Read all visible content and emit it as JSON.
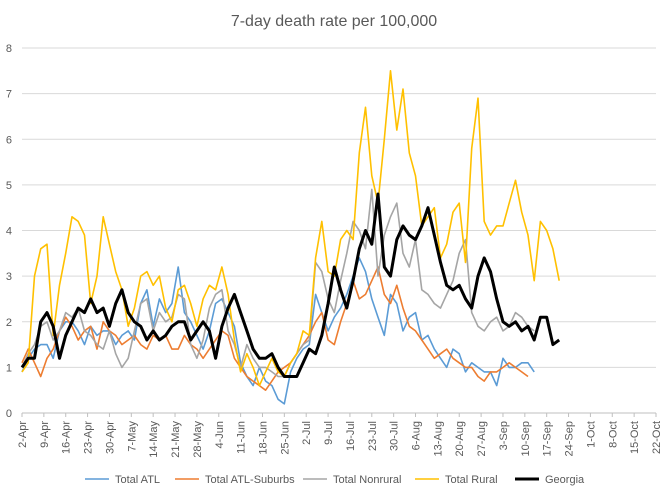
{
  "chart_data": {
    "type": "line",
    "title": "7-day death rate per 100,000",
    "xlabel": "",
    "ylabel": "",
    "ylim": [
      0,
      8
    ],
    "yticks": [
      "0",
      "1",
      "2",
      "3",
      "4",
      "5",
      "6",
      "7",
      "8"
    ],
    "grid": "horizontal",
    "legend_position": "bottom",
    "xticks": [
      "2-Apr",
      "9-Apr",
      "16-Apr",
      "23-Apr",
      "30-Apr",
      "7-May",
      "14-May",
      "21-May",
      "28-May",
      "4-Jun",
      "11-Jun",
      "18-Jun",
      "25-Jun",
      "2-Jul",
      "9-Jul",
      "16-Jul",
      "23-Jul",
      "30-Jul",
      "6-Aug",
      "13-Aug",
      "20-Aug",
      "27-Aug",
      "3-Sep",
      "10-Sep",
      "17-Sep",
      "24-Sep",
      "1-Oct",
      "8-Oct",
      "15-Oct",
      "22-Oct"
    ],
    "x_start_tick": "2-Apr",
    "x_step_days": 2,
    "series": [
      {
        "name": "Total ATL",
        "color": "#5b9bd5",
        "width": 1.6,
        "values": [
          0.9,
          1.2,
          1.4,
          1.5,
          1.5,
          1.2,
          1.8,
          2.0,
          2.0,
          1.8,
          1.5,
          1.9,
          1.7,
          1.8,
          1.8,
          1.5,
          1.7,
          1.8,
          1.6,
          2.4,
          2.7,
          1.9,
          2.5,
          2.2,
          2.4,
          3.2,
          2.2,
          2.0,
          1.7,
          1.4,
          1.8,
          2.4,
          2.5,
          2.2,
          1.9,
          1.1,
          0.8,
          0.6,
          1.0,
          0.7,
          0.6,
          0.3,
          0.2,
          0.9,
          1.2,
          1.4,
          1.5,
          2.6,
          2.2,
          1.8,
          2.1,
          2.3,
          2.6,
          3.0,
          3.4,
          3.1,
          2.5,
          2.1,
          1.7,
          2.6,
          2.4,
          1.8,
          2.1,
          2.2,
          1.6,
          1.7,
          1.4,
          1.2,
          1.0,
          1.4,
          1.3,
          0.9,
          1.1,
          1.0,
          0.9,
          0.9,
          0.6,
          1.2,
          1.0,
          1.0,
          1.1,
          1.1,
          0.9
        ]
      },
      {
        "name": "Total ATL-Suburbs",
        "color": "#ed7d31",
        "width": 1.6,
        "values": [
          1.1,
          1.4,
          1.1,
          0.8,
          1.2,
          1.4,
          1.8,
          2.1,
          1.9,
          1.6,
          1.8,
          1.9,
          1.4,
          2.0,
          1.8,
          1.7,
          1.5,
          1.6,
          1.7,
          1.5,
          1.4,
          1.7,
          1.6,
          1.7,
          1.4,
          1.4,
          1.7,
          1.5,
          1.4,
          1.2,
          1.4,
          1.6,
          1.8,
          1.7,
          1.2,
          1.0,
          0.8,
          0.7,
          0.6,
          0.5,
          0.7,
          0.9,
          1.0,
          1.1,
          1.3,
          1.5,
          1.7,
          2.0,
          2.2,
          1.6,
          1.5,
          2.0,
          2.4,
          2.9,
          2.5,
          2.6,
          2.9,
          3.2,
          2.6,
          2.4,
          2.8,
          2.3,
          1.9,
          1.8,
          1.6,
          1.4,
          1.2,
          1.3,
          1.4,
          1.2,
          1.1,
          1.0,
          1.0,
          0.8,
          0.7,
          0.9,
          0.9,
          1.0,
          1.1,
          1.0,
          0.9,
          0.8
        ]
      },
      {
        "name": "Total Nonrural",
        "color": "#a5a5a5",
        "width": 1.6,
        "values": [
          1.0,
          1.3,
          1.5,
          1.9,
          2.0,
          1.6,
          1.8,
          2.2,
          2.1,
          2.3,
          1.8,
          1.7,
          1.5,
          1.4,
          1.8,
          1.3,
          1.0,
          1.2,
          1.8,
          2.4,
          2.5,
          1.8,
          2.2,
          2.0,
          2.1,
          2.6,
          2.5,
          1.5,
          1.2,
          1.6,
          2.3,
          2.6,
          2.7,
          1.8,
          1.5,
          1.0,
          1.5,
          1.2,
          1.0,
          1.0,
          0.9,
          0.8,
          0.8,
          1.1,
          1.3,
          1.5,
          1.6,
          3.3,
          3.1,
          2.5,
          2.2,
          2.9,
          3.5,
          4.2,
          4.0,
          3.6,
          4.9,
          3.0,
          3.9,
          4.3,
          4.6,
          3.5,
          3.2,
          3.8,
          2.7,
          2.6,
          2.4,
          2.3,
          2.6,
          2.9,
          3.5,
          3.8,
          2.2,
          1.9,
          1.8,
          2.0,
          2.1,
          1.8,
          1.9,
          2.2,
          2.1,
          1.9,
          1.8
        ]
      },
      {
        "name": "Total Rural",
        "color": "#ffc000",
        "width": 1.6,
        "values": [
          0.9,
          1.1,
          3.0,
          3.6,
          3.7,
          1.7,
          2.8,
          3.5,
          4.3,
          4.2,
          3.9,
          2.4,
          3.0,
          4.3,
          3.7,
          3.1,
          2.7,
          1.9,
          2.3,
          3.0,
          3.1,
          2.8,
          3.0,
          2.3,
          2.0,
          2.7,
          2.8,
          2.4,
          1.9,
          2.5,
          2.8,
          2.7,
          3.2,
          2.6,
          1.6,
          0.9,
          1.3,
          1.0,
          0.6,
          0.9,
          1.2,
          0.9,
          0.8,
          1.1,
          1.3,
          1.8,
          1.7,
          3.4,
          4.2,
          3.1,
          3.0,
          3.8,
          4.0,
          3.8,
          5.7,
          6.7,
          5.2,
          4.6,
          6.0,
          7.5,
          6.2,
          7.1,
          5.7,
          5.2,
          4.1,
          4.3,
          4.5,
          3.4,
          3.7,
          4.4,
          4.6,
          3.3,
          5.8,
          6.9,
          4.2,
          3.9,
          4.1,
          4.1,
          4.6,
          5.1,
          4.4,
          3.9,
          2.9,
          4.2,
          4.0,
          3.6,
          2.9
        ]
      },
      {
        "name": "Georgia",
        "color": "#000000",
        "width": 3,
        "values": [
          1.0,
          1.2,
          1.2,
          2.0,
          2.2,
          1.9,
          1.2,
          1.7,
          2.0,
          2.3,
          2.2,
          2.5,
          2.2,
          2.3,
          1.9,
          2.4,
          2.7,
          2.2,
          2.0,
          1.9,
          1.6,
          1.8,
          1.6,
          1.7,
          1.9,
          2.0,
          2.0,
          1.6,
          1.8,
          2.0,
          1.8,
          1.2,
          1.9,
          2.3,
          2.6,
          2.2,
          1.8,
          1.4,
          1.2,
          1.2,
          1.3,
          1.0,
          0.8,
          0.8,
          0.8,
          1.1,
          1.4,
          1.3,
          1.7,
          2.4,
          3.2,
          2.7,
          2.3,
          2.9,
          3.6,
          4.0,
          3.7,
          4.8,
          3.2,
          3.0,
          3.8,
          4.1,
          3.9,
          3.8,
          4.1,
          4.5,
          3.9,
          3.3,
          2.8,
          2.7,
          2.8,
          2.5,
          2.3,
          3.0,
          3.4,
          3.1,
          2.5,
          2.0,
          1.9,
          2.0,
          1.8,
          1.9,
          1.6,
          2.1,
          2.1,
          1.5,
          1.6
        ]
      }
    ]
  }
}
